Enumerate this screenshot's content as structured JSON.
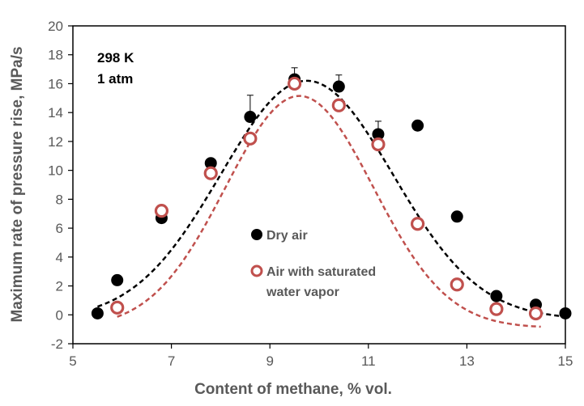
{
  "chart_data": {
    "type": "scatter",
    "title": "",
    "xlabel": "Content of methane, % vol.",
    "ylabel": "Maximum rate of pressure rise, MPa/s",
    "xlim": [
      5,
      15
    ],
    "ylim": [
      -2,
      20
    ],
    "x_ticks": [
      "5",
      "7",
      "9",
      "11",
      "13",
      "15"
    ],
    "y_ticks": [
      "-2",
      "0",
      "2",
      "4",
      "6",
      "8",
      "10",
      "12",
      "14",
      "16",
      "18",
      "20"
    ],
    "x_tick_values": [
      5,
      7,
      9,
      11,
      13,
      15
    ],
    "y_tick_values": [
      -2,
      0,
      2,
      4,
      6,
      8,
      10,
      12,
      14,
      16,
      18,
      20
    ],
    "grid": false,
    "legend_position": "center-right",
    "annotation_lines": [
      "298 K",
      "1 atm"
    ],
    "series": [
      {
        "name": "Dry air",
        "marker": "filled-circle",
        "color": "#000000",
        "x": [
          5.5,
          5.9,
          6.8,
          7.8,
          8.6,
          9.5,
          10.4,
          11.2,
          12.0,
          12.8,
          13.6,
          14.4,
          15.0
        ],
        "y": [
          0.1,
          2.4,
          6.7,
          10.5,
          13.7,
          16.3,
          15.8,
          12.5,
          13.1,
          6.8,
          1.3,
          0.7,
          0.1
        ],
        "err_up": [
          0,
          0,
          0,
          0,
          1.5,
          0.8,
          0.8,
          0.9,
          0,
          0,
          0,
          0,
          0
        ],
        "fit_curve": {
          "style": "dashed",
          "color": "#000000",
          "peak_x": 9.75,
          "peak_y": 16.2,
          "sigma": 1.75
        }
      },
      {
        "name": "Air with saturated water vapor",
        "marker": "open-circle",
        "color": "#c0504d",
        "x": [
          5.9,
          6.8,
          7.8,
          8.6,
          9.5,
          10.4,
          11.2,
          12.0,
          12.8,
          13.6,
          14.4
        ],
        "y": [
          0.5,
          7.2,
          9.8,
          12.2,
          16.0,
          14.5,
          11.8,
          6.3,
          2.1,
          0.4,
          0.1
        ],
        "err_up": [
          0,
          0,
          0.5,
          0.3,
          0.3,
          0.3,
          0.3,
          0,
          0,
          0,
          0
        ],
        "fit_curve": {
          "style": "dashed",
          "color": "#c0504d",
          "peak_x": 9.6,
          "peak_y": 15.15,
          "sigma": 1.5
        }
      }
    ]
  },
  "colors": {
    "axis": "#000000",
    "text": "#595959",
    "series1": "#000000",
    "series2": "#c0504d"
  }
}
